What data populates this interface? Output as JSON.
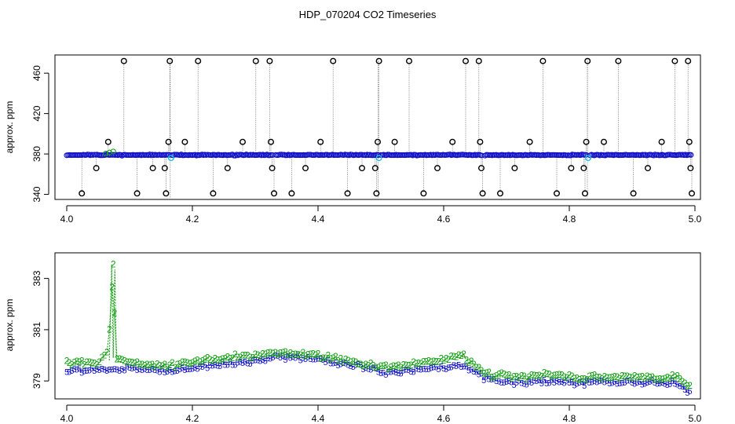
{
  "figure": {
    "title": "HDP_070204  CO2 Timeseries",
    "colors": {
      "main_series": "#1010c8",
      "secondary_series": "#16a016",
      "transition_marker": "#1ec0e0",
      "outlier_marker": "#000000",
      "spike_line": "#7f7f7f"
    }
  },
  "chart_data": [
    {
      "type": "scatter",
      "title": "HDP_070204  CO2 Timeseries",
      "xlabel": "",
      "ylabel": "approx. ppm",
      "xlim": [
        4.0,
        5.0
      ],
      "ylim": [
        335,
        478
      ],
      "x_ticks": [
        "4.0",
        "4.2",
        "4.4",
        "4.6",
        "4.8",
        "5.0"
      ],
      "y_ticks": [
        "340",
        "380",
        "420",
        "460"
      ],
      "grid": false,
      "series": [
        {
          "role": "main points (open circles)",
          "color": "#1010c8",
          "baseline_ppm": 379,
          "segments": [
            {
              "x_start": 4.0,
              "x_end": 4.164
            },
            {
              "x_start": 4.167,
              "x_end": 4.328
            },
            {
              "x_start": 4.333,
              "x_end": 4.496
            },
            {
              "x_start": 4.5,
              "x_end": 4.661
            },
            {
              "x_start": 4.666,
              "x_end": 4.828
            },
            {
              "x_start": 4.833,
              "x_end": 4.995
            }
          ]
        },
        {
          "role": "segment transition points",
          "color": "#1ec0e0",
          "points": [
            {
              "x": 4.166,
              "y": 376
            },
            {
              "x": 4.497,
              "y": 376
            },
            {
              "x": 4.83,
              "y": 376
            }
          ]
        },
        {
          "role": "outlier spikes (black circles)",
          "color": "#000000",
          "points": [
            {
              "x": 4.024,
              "y": 341
            },
            {
              "x": 4.047,
              "y": 366
            },
            {
              "x": 4.066,
              "y": 392
            },
            {
              "x": 4.091,
              "y": 472
            },
            {
              "x": 4.112,
              "y": 341
            },
            {
              "x": 4.137,
              "y": 366
            },
            {
              "x": 4.156,
              "y": 366
            },
            {
              "x": 4.158,
              "y": 341
            },
            {
              "x": 4.162,
              "y": 392
            },
            {
              "x": 4.164,
              "y": 472
            },
            {
              "x": 4.188,
              "y": 392
            },
            {
              "x": 4.209,
              "y": 472
            },
            {
              "x": 4.233,
              "y": 341
            },
            {
              "x": 4.256,
              "y": 366
            },
            {
              "x": 4.28,
              "y": 392
            },
            {
              "x": 4.301,
              "y": 472
            },
            {
              "x": 4.323,
              "y": 472
            },
            {
              "x": 4.325,
              "y": 392
            },
            {
              "x": 4.327,
              "y": 366
            },
            {
              "x": 4.33,
              "y": 341
            },
            {
              "x": 4.358,
              "y": 341
            },
            {
              "x": 4.38,
              "y": 366
            },
            {
              "x": 4.404,
              "y": 392
            },
            {
              "x": 4.424,
              "y": 472
            },
            {
              "x": 4.447,
              "y": 341
            },
            {
              "x": 4.47,
              "y": 366
            },
            {
              "x": 4.491,
              "y": 366
            },
            {
              "x": 4.493,
              "y": 341
            },
            {
              "x": 4.495,
              "y": 392
            },
            {
              "x": 4.497,
              "y": 472
            },
            {
              "x": 4.522,
              "y": 392
            },
            {
              "x": 4.545,
              "y": 472
            },
            {
              "x": 4.568,
              "y": 341
            },
            {
              "x": 4.59,
              "y": 366
            },
            {
              "x": 4.614,
              "y": 392
            },
            {
              "x": 4.635,
              "y": 472
            },
            {
              "x": 4.656,
              "y": 472
            },
            {
              "x": 4.658,
              "y": 392
            },
            {
              "x": 4.66,
              "y": 366
            },
            {
              "x": 4.662,
              "y": 341
            },
            {
              "x": 4.69,
              "y": 341
            },
            {
              "x": 4.713,
              "y": 366
            },
            {
              "x": 4.737,
              "y": 392
            },
            {
              "x": 4.758,
              "y": 472
            },
            {
              "x": 4.78,
              "y": 341
            },
            {
              "x": 4.803,
              "y": 366
            },
            {
              "x": 4.823,
              "y": 366
            },
            {
              "x": 4.825,
              "y": 341
            },
            {
              "x": 4.827,
              "y": 392
            },
            {
              "x": 4.829,
              "y": 472
            },
            {
              "x": 4.855,
              "y": 392
            },
            {
              "x": 4.878,
              "y": 472
            },
            {
              "x": 4.902,
              "y": 341
            },
            {
              "x": 4.925,
              "y": 366
            },
            {
              "x": 4.947,
              "y": 392
            },
            {
              "x": 4.968,
              "y": 472
            },
            {
              "x": 4.989,
              "y": 472
            },
            {
              "x": 4.991,
              "y": 392
            },
            {
              "x": 4.993,
              "y": 366
            },
            {
              "x": 4.995,
              "y": 341
            }
          ]
        }
      ]
    },
    {
      "type": "line",
      "xlabel": "",
      "ylabel": "approx. ppm",
      "xlim": [
        4.0,
        5.0
      ],
      "ylim": [
        378.3,
        384.0
      ],
      "x_ticks": [
        "4.0",
        "4.2",
        "4.4",
        "4.6",
        "4.8",
        "5.0"
      ],
      "y_ticks": [
        "379",
        "381",
        "383"
      ],
      "grid": false,
      "series": [
        {
          "symbol": "5",
          "color": "#1010c8",
          "points": [
            {
              "x": 4.0,
              "y": 379.4
            },
            {
              "x": 4.1,
              "y": 379.5
            },
            {
              "x": 4.16,
              "y": 379.4
            },
            {
              "x": 4.2,
              "y": 379.5
            },
            {
              "x": 4.32,
              "y": 379.85
            },
            {
              "x": 4.34,
              "y": 379.95
            },
            {
              "x": 4.4,
              "y": 379.85
            },
            {
              "x": 4.49,
              "y": 379.45
            },
            {
              "x": 4.5,
              "y": 379.3
            },
            {
              "x": 4.55,
              "y": 379.4
            },
            {
              "x": 4.6,
              "y": 379.55
            },
            {
              "x": 4.63,
              "y": 379.65
            },
            {
              "x": 4.66,
              "y": 379.2
            },
            {
              "x": 4.67,
              "y": 379.05
            },
            {
              "x": 4.73,
              "y": 378.9
            },
            {
              "x": 4.76,
              "y": 379.0
            },
            {
              "x": 4.83,
              "y": 378.9
            },
            {
              "x": 4.84,
              "y": 379.0
            },
            {
              "x": 4.95,
              "y": 378.9
            },
            {
              "x": 4.97,
              "y": 378.95
            },
            {
              "x": 4.99,
              "y": 378.55
            }
          ]
        },
        {
          "symbol": "2",
          "color": "#16a016",
          "points": [
            {
              "x": 4.0,
              "y": 379.7
            },
            {
              "x": 4.05,
              "y": 379.75
            },
            {
              "x": 4.066,
              "y": 380.2
            },
            {
              "x": 4.074,
              "y": 383.55
            },
            {
              "x": 4.078,
              "y": 379.9
            },
            {
              "x": 4.1,
              "y": 379.7
            },
            {
              "x": 4.16,
              "y": 379.6
            },
            {
              "x": 4.2,
              "y": 379.75
            },
            {
              "x": 4.32,
              "y": 380.05
            },
            {
              "x": 4.34,
              "y": 380.1
            },
            {
              "x": 4.4,
              "y": 380.0
            },
            {
              "x": 4.49,
              "y": 379.6
            },
            {
              "x": 4.5,
              "y": 379.5
            },
            {
              "x": 4.55,
              "y": 379.65
            },
            {
              "x": 4.6,
              "y": 379.85
            },
            {
              "x": 4.63,
              "y": 380.0
            },
            {
              "x": 4.66,
              "y": 379.4
            },
            {
              "x": 4.67,
              "y": 379.25
            },
            {
              "x": 4.73,
              "y": 379.15
            },
            {
              "x": 4.76,
              "y": 379.25
            },
            {
              "x": 4.83,
              "y": 379.1
            },
            {
              "x": 4.84,
              "y": 379.2
            },
            {
              "x": 4.95,
              "y": 379.1
            },
            {
              "x": 4.97,
              "y": 379.2
            },
            {
              "x": 4.99,
              "y": 378.75
            }
          ]
        }
      ]
    }
  ]
}
